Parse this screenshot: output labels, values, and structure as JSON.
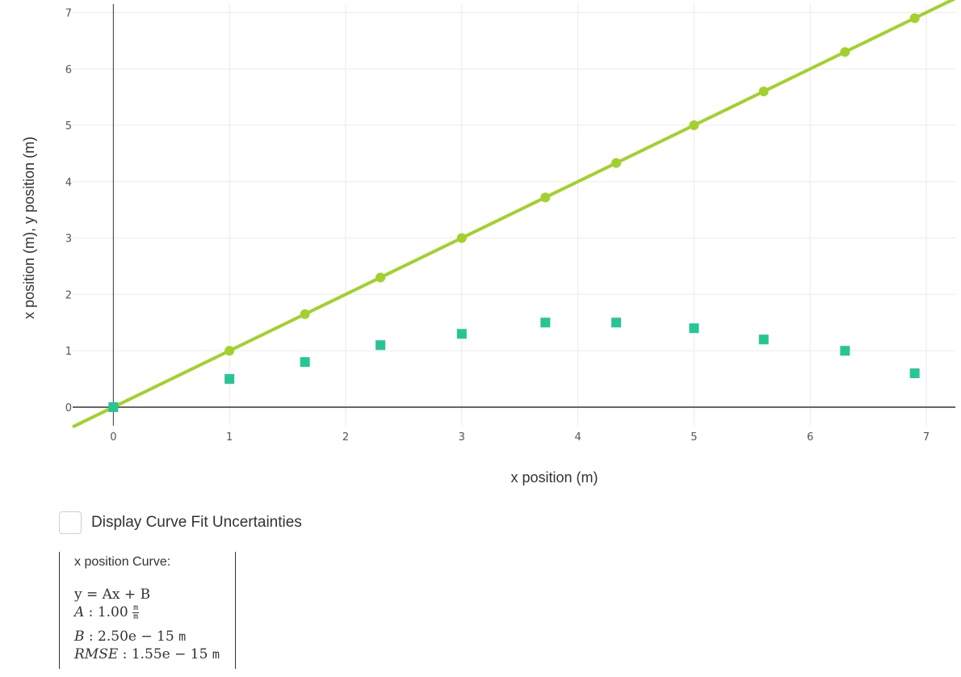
{
  "chart_data": {
    "type": "scatter",
    "xlabel": "x position (m)",
    "ylabel": "x position (m), y position (m)",
    "xlim": [
      -0.35,
      7.25
    ],
    "ylim": [
      -0.33,
      7.15
    ],
    "xticks": [
      0,
      1,
      2,
      3,
      4,
      5,
      6,
      7
    ],
    "yticks": [
      0,
      1,
      2,
      3,
      4,
      5,
      6,
      7
    ],
    "grid": true,
    "series": [
      {
        "name": "x position",
        "marker": "circle",
        "color": "#a2d02c",
        "x": [
          0,
          1,
          1.65,
          2.3,
          3,
          3.72,
          4.33,
          5,
          5.6,
          6.3,
          6.9
        ],
        "y": [
          0,
          1,
          1.65,
          2.3,
          3,
          3.72,
          4.33,
          5,
          5.6,
          6.3,
          6.9
        ]
      },
      {
        "name": "y position",
        "marker": "square",
        "color": "#27c494",
        "x": [
          0,
          1,
          1.65,
          2.3,
          3,
          3.72,
          4.33,
          5,
          5.6,
          6.3,
          6.9
        ],
        "y": [
          0,
          0.5,
          0.8,
          1.1,
          1.3,
          1.5,
          1.5,
          1.4,
          1.2,
          1.0,
          0.6
        ]
      }
    ],
    "fit_line": {
      "color": "#a2d02c",
      "slope": 1.0,
      "intercept": 0.0
    }
  },
  "controls": {
    "uncertainty_label": "Display Curve Fit Uncertainties",
    "uncertainty_checked": false
  },
  "fit": {
    "title": "x position Curve:",
    "equation": "y = Ax + B",
    "A_label": "A",
    "A_value": "1.00",
    "A_unit_num": "m",
    "A_unit_den": "m",
    "B_label": "B",
    "B_value": "2.50e − 15",
    "B_unit": "m",
    "rmse_label": "RMSE",
    "rmse_value": "1.55e − 15",
    "rmse_unit": "m"
  }
}
